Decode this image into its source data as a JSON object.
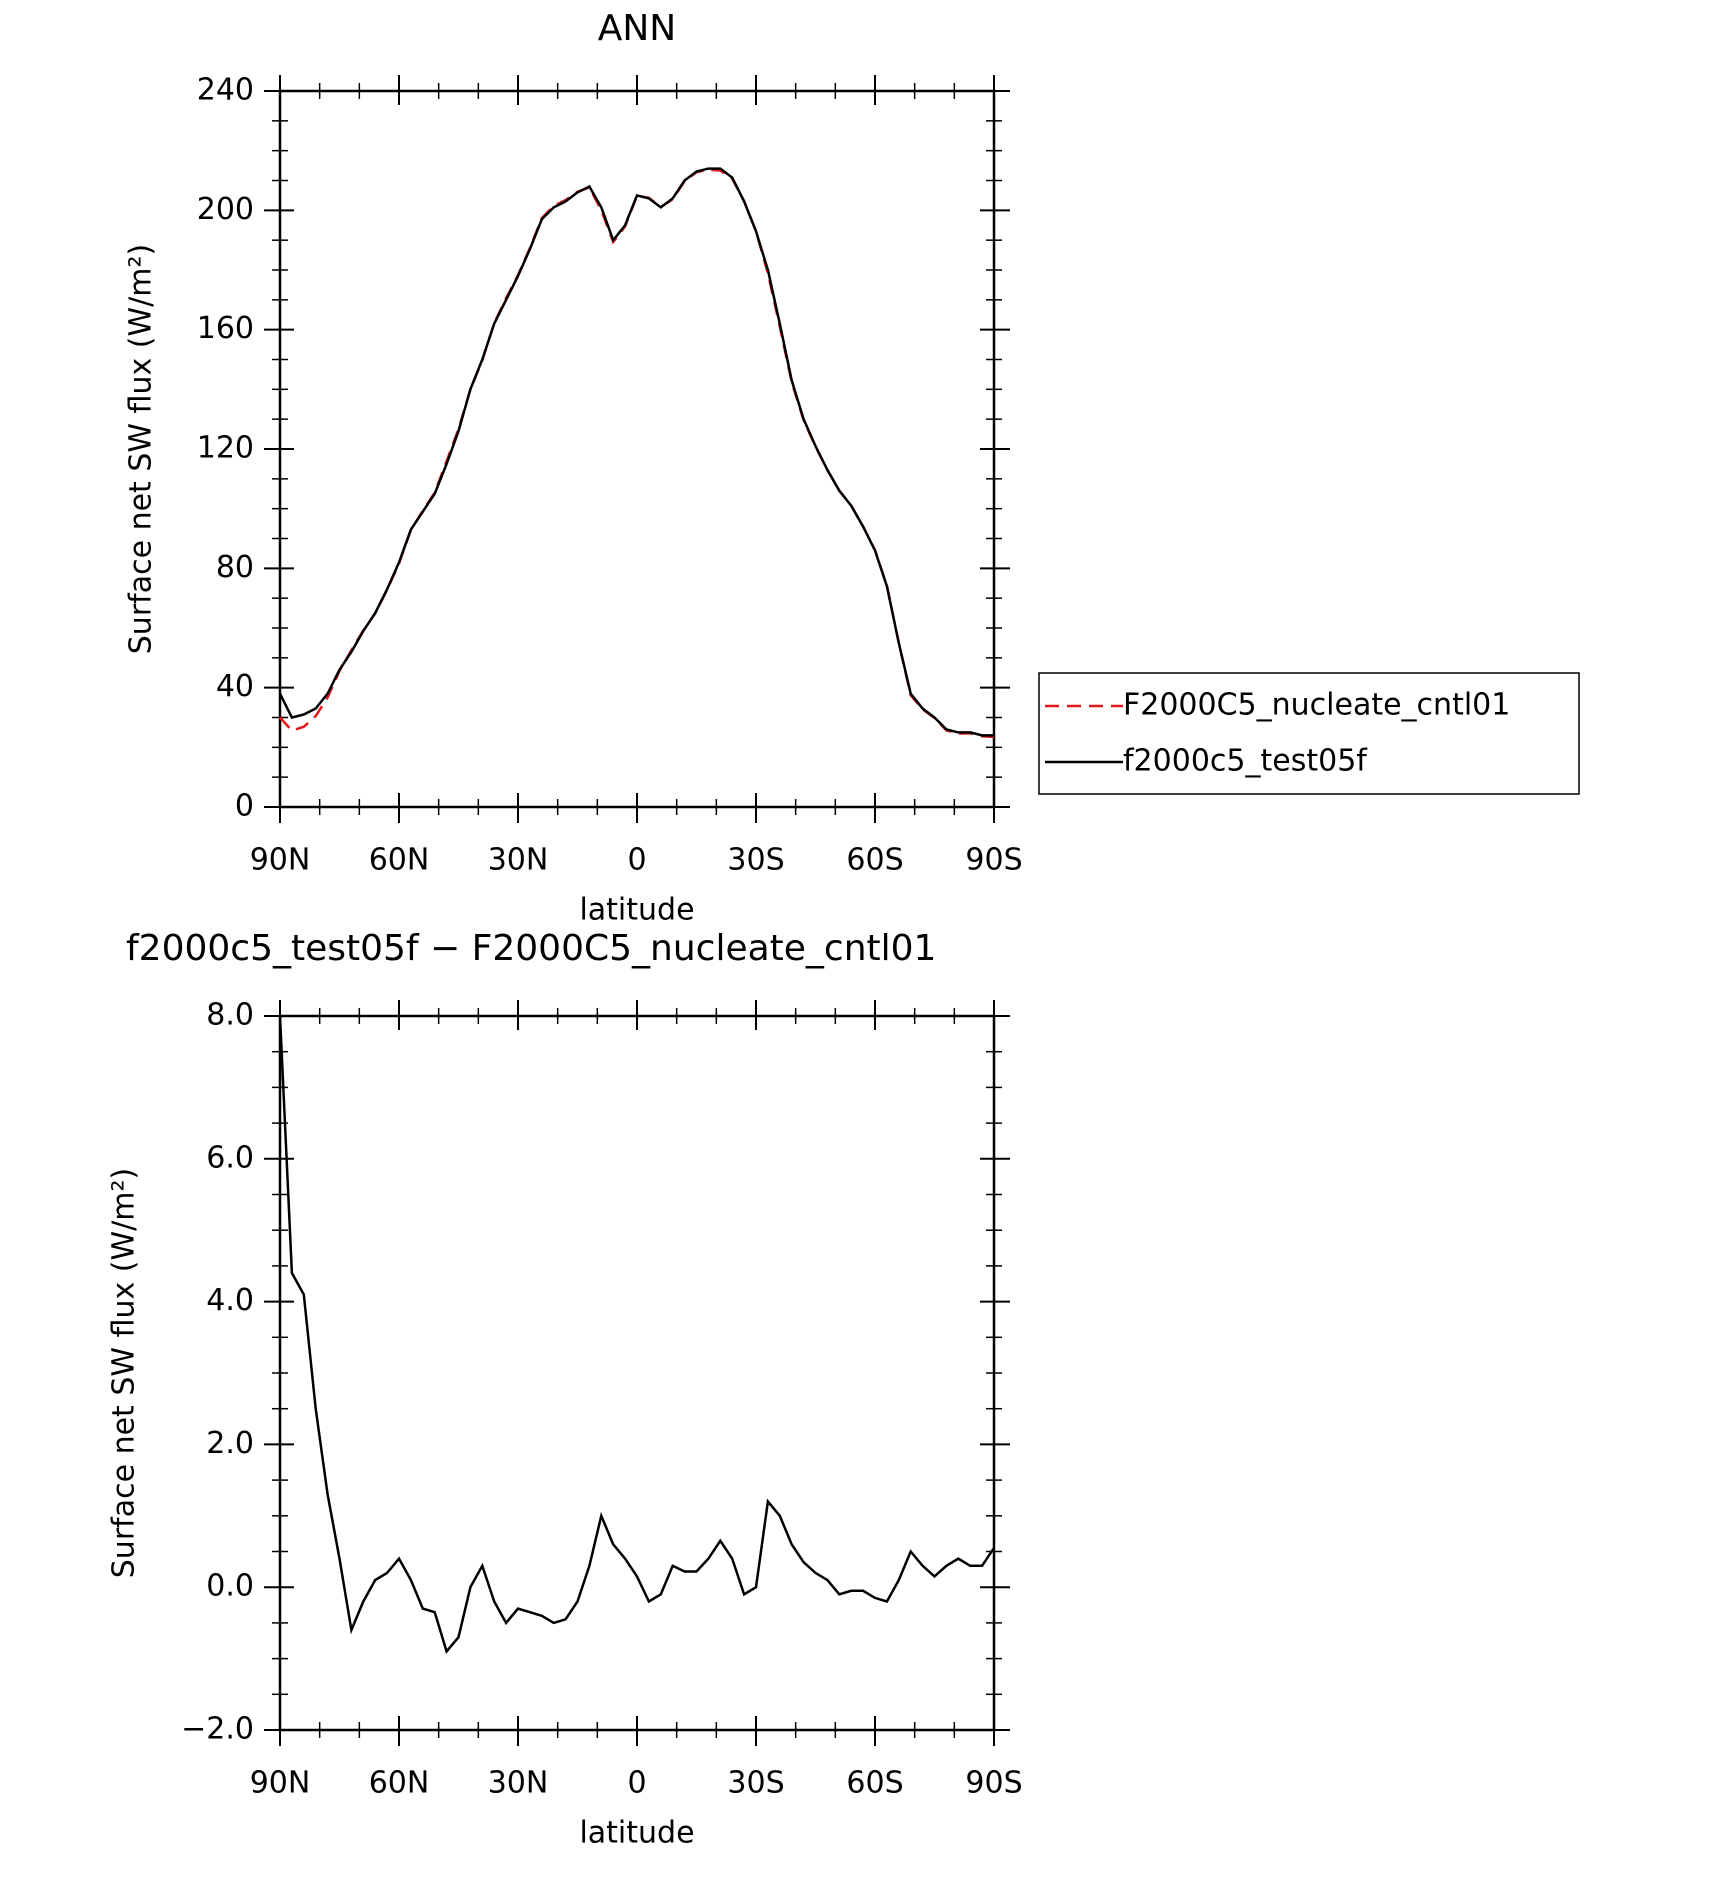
{
  "chart_data": [
    {
      "type": "line",
      "title": "ANN",
      "xlabel": "latitude",
      "ylabel": "Surface net SW flux (W/m²)",
      "x": [
        90,
        87,
        84,
        81,
        78,
        75,
        72,
        69,
        66,
        63,
        60,
        57,
        54,
        51,
        48,
        45,
        42,
        39,
        36,
        33,
        30,
        27,
        24,
        21,
        18,
        15,
        12,
        9,
        6,
        3,
        0,
        -3,
        -6,
        -9,
        -12,
        -15,
        -18,
        -21,
        -24,
        -27,
        -30,
        -33,
        -36,
        -39,
        -42,
        -45,
        -48,
        -51,
        -54,
        -57,
        -60,
        -63,
        -66,
        -69,
        -72,
        -75,
        -78,
        -81,
        -84,
        -87,
        -90
      ],
      "series": [
        {
          "name": "F2000C5_nucleate_cntl01",
          "color": "#e41a1c",
          "style": "dashed",
          "values": [
            30,
            25.6,
            26.9,
            30.5,
            36.7,
            45.6,
            52.6,
            59.2,
            64.9,
            72.8,
            81.6,
            92.9,
            99.3,
            105.35,
            115.9,
            126.7,
            140,
            149.7,
            162.2,
            170.5,
            178.3,
            187.35,
            197.4,
            201.5,
            203.45,
            206.2,
            207.7,
            200,
            189.4,
            194.6,
            204.85,
            204.2,
            201.1,
            203.7,
            209.78,
            212.78,
            213.6,
            213.35,
            210.6,
            203.1,
            193,
            178.8,
            161,
            142.4,
            129.65,
            120.8,
            112.9,
            106.1,
            101.05,
            94.05,
            86.15,
            74.2,
            54.9,
            37.5,
            32.7,
            29.85,
            25.7,
            24.6,
            24.7,
            23.7,
            23.45
          ]
        },
        {
          "name": "f2000c5_test05f",
          "color": "#000000",
          "style": "solid",
          "values": [
            38,
            30,
            31,
            33,
            38,
            46,
            52,
            59,
            65,
            73,
            82,
            93,
            99,
            105,
            115,
            126,
            140,
            150,
            162,
            170,
            178,
            187,
            197,
            201,
            203,
            206,
            208,
            201,
            190,
            195,
            205,
            204,
            201,
            204,
            210,
            213,
            214,
            214,
            211,
            203,
            193,
            180,
            162,
            143,
            130,
            121,
            113,
            106,
            101,
            94,
            86,
            74,
            55,
            38,
            33,
            30,
            26,
            25,
            25,
            24,
            24
          ]
        }
      ],
      "xlim": [
        90,
        -90
      ],
      "xticks": [
        {
          "value": 90,
          "label": "90N"
        },
        {
          "value": 60,
          "label": "60N"
        },
        {
          "value": 30,
          "label": "30N"
        },
        0,
        {
          "value": -30,
          "label": "30S"
        },
        {
          "value": -60,
          "label": "60S"
        },
        {
          "value": -90,
          "label": "90S"
        }
      ],
      "minor_xticks": [
        80,
        70,
        50,
        40,
        20,
        10,
        -10,
        -20,
        -40,
        -50,
        -70,
        -80
      ],
      "ylim": [
        0,
        240
      ],
      "yticks": [
        0,
        40,
        80,
        120,
        160,
        200,
        240
      ],
      "minor_yticks": [
        10,
        20,
        30,
        50,
        60,
        70,
        90,
        100,
        110,
        130,
        140,
        150,
        170,
        180,
        190,
        210,
        220,
        230
      ],
      "legend": "outside-right"
    },
    {
      "type": "line",
      "title": "f2000c5_test05f − F2000C5_nucleate_cntl01",
      "xlabel": "latitude",
      "ylabel": "Surface net SW flux (W/m²)",
      "x": [
        90,
        87,
        84,
        81,
        78,
        75,
        72,
        69,
        66,
        63,
        60,
        57,
        54,
        51,
        48,
        45,
        42,
        39,
        36,
        33,
        30,
        27,
        24,
        21,
        18,
        15,
        12,
        9,
        6,
        3,
        0,
        -3,
        -6,
        -9,
        -12,
        -15,
        -18,
        -21,
        -24,
        -27,
        -30,
        -33,
        -36,
        -39,
        -42,
        -45,
        -48,
        -51,
        -54,
        -57,
        -60,
        -63,
        -66,
        -69,
        -72,
        -75,
        -78,
        -81,
        -84,
        -87,
        -90
      ],
      "values": [
        8.0,
        4.4,
        4.1,
        2.5,
        1.3,
        0.4,
        -0.6,
        -0.2,
        0.1,
        0.2,
        0.4,
        0.1,
        -0.3,
        -0.35,
        -0.9,
        -0.7,
        0.0,
        0.3,
        -0.2,
        -0.5,
        -0.3,
        -0.35,
        -0.4,
        -0.5,
        -0.45,
        -0.2,
        0.3,
        1.0,
        0.6,
        0.4,
        0.15,
        -0.2,
        -0.1,
        0.3,
        0.22,
        0.22,
        0.4,
        0.65,
        0.4,
        -0.1,
        0.0,
        1.2,
        1.0,
        0.6,
        0.35,
        0.2,
        0.1,
        -0.1,
        -0.05,
        -0.05,
        -0.15,
        -0.2,
        0.1,
        0.5,
        0.3,
        0.15,
        0.3,
        0.4,
        0.3,
        0.3,
        0.55
      ],
      "color": "#000000",
      "xlim": [
        90,
        -90
      ],
      "xticks": [
        {
          "value": 90,
          "label": "90N"
        },
        {
          "value": 60,
          "label": "60N"
        },
        {
          "value": 30,
          "label": "30N"
        },
        0,
        {
          "value": -30,
          "label": "30S"
        },
        {
          "value": -60,
          "label": "60S"
        },
        {
          "value": -90,
          "label": "90S"
        }
      ],
      "minor_xticks": [
        80,
        70,
        50,
        40,
        20,
        10,
        -10,
        -20,
        -40,
        -50,
        -70,
        -80
      ],
      "ylim": [
        -2,
        8
      ],
      "yticks": [
        {
          "value": -2,
          "label": "−2.0"
        },
        {
          "value": 0,
          "label": "0.0"
        },
        {
          "value": 2,
          "label": "2.0"
        },
        {
          "value": 4,
          "label": "4.0"
        },
        {
          "value": 6,
          "label": "6.0"
        },
        {
          "value": 8,
          "label": "8.0"
        }
      ],
      "minor_yticks": [
        -1.5,
        -1,
        -0.5,
        0.5,
        1,
        1.5,
        2.5,
        3,
        3.5,
        4.5,
        5,
        5.5,
        6.5,
        7,
        7.5
      ]
    }
  ]
}
